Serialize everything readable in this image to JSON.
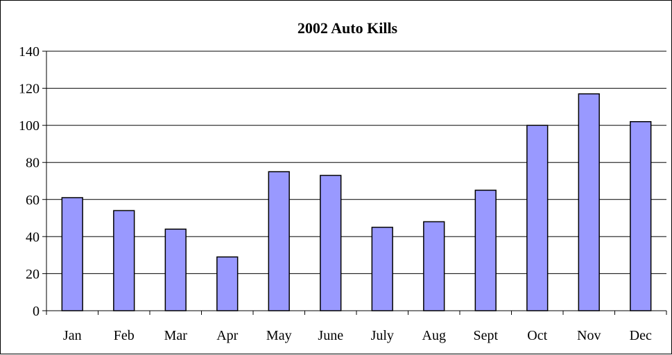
{
  "chart_data": {
    "type": "bar",
    "title": "2002 Auto Kills",
    "xlabel": "",
    "ylabel": "",
    "categories": [
      "Jan",
      "Feb",
      "Mar",
      "Apr",
      "May",
      "June",
      "July",
      "Aug",
      "Sept",
      "Oct",
      "Nov",
      "Dec"
    ],
    "values": [
      61,
      54,
      44,
      29,
      75,
      73,
      45,
      48,
      65,
      100,
      117,
      102
    ],
    "ylim": [
      0,
      140
    ],
    "yticks": [
      "0",
      "20",
      "40",
      "60",
      "80",
      "100",
      "120",
      "140"
    ],
    "grid": true,
    "legend": "none",
    "colors": {
      "bar_fill": "#9999ff",
      "bar_stroke": "#000000",
      "gridline": "#000000",
      "background": "#ffffff"
    }
  }
}
